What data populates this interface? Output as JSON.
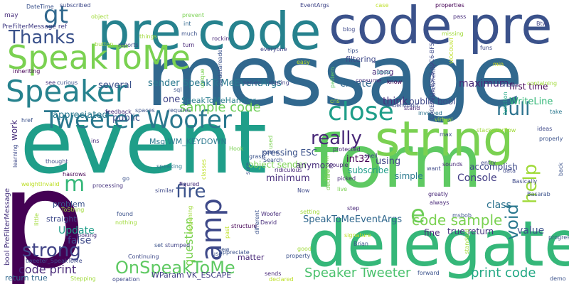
{
  "words": [
    {
      "text": "message",
      "color": "#31688e"
    },
    {
      "text": "event",
      "color": "#1f9e89"
    },
    {
      "text": "p",
      "color": "#440154"
    },
    {
      "text": "form",
      "color": "#5ec962"
    },
    {
      "text": "pre code",
      "color": "#26828e"
    },
    {
      "text": "code pre",
      "color": "#3b528b"
    },
    {
      "text": "delegate",
      "color": "#35b779"
    },
    {
      "text": "string",
      "color": "#7ad151"
    },
    {
      "text": "SpeakToMe",
      "color": "#7ad151"
    },
    {
      "text": "Speaker",
      "color": "#26828e"
    },
    {
      "text": "Tweeter Woofer",
      "color": "#2a788e"
    },
    {
      "text": "close",
      "color": "#1f9e89"
    },
    {
      "text": "amp",
      "color": "#3e4989"
    },
    {
      "text": "really",
      "color": "#482878"
    },
    {
      "text": "null",
      "color": "#2c728e"
    },
    {
      "text": "help",
      "color": "#a0da39"
    },
    {
      "text": "gt",
      "color": "#31688e"
    },
    {
      "text": "Thanks",
      "color": "#3b528b"
    },
    {
      "text": "fire",
      "color": "#3b528b"
    },
    {
      "text": "strong",
      "color": "#414487"
    },
    {
      "text": "OnSpeakToMe",
      "color": "#5ec962"
    },
    {
      "text": "code sample",
      "color": "#7ad151"
    },
    {
      "text": "e",
      "color": "#6ece58"
    },
    {
      "text": "void",
      "color": "#2a788e"
    },
    {
      "text": "m",
      "color": "#35b779"
    },
    {
      "text": "sample code",
      "color": "#6ece58"
    },
    {
      "text": "Speaker Tweeter",
      "color": "#4ac16d"
    },
    {
      "text": "print code",
      "color": "#22a884"
    },
    {
      "text": "code print",
      "color": "#482878"
    },
    {
      "text": "SpeakToMeEventArgs",
      "color": "#31688e"
    },
    {
      "text": "question",
      "color": "#7ad151"
    },
    {
      "text": "Console",
      "color": "#433e85"
    },
    {
      "text": "class",
      "color": "#2c728e"
    },
    {
      "text": "Update",
      "color": "#1f9e89"
    },
    {
      "text": "value",
      "color": "#3b528b"
    },
    {
      "text": "false",
      "color": "#3e4989"
    },
    {
      "text": "true return",
      "color": "#46337e"
    },
    {
      "text": "fine",
      "color": "#482878"
    },
    {
      "text": "create",
      "color": "#31688e"
    },
    {
      "text": "maximum",
      "color": "#482878"
    },
    {
      "text": "first time",
      "color": "#440154"
    },
    {
      "text": "sender SpeakToMeEventArgs",
      "color": "#2a788e"
    },
    {
      "text": "several",
      "color": "#3b528b"
    },
    {
      "text": "SpeakToMeHandler",
      "color": "#287c8e"
    },
    {
      "text": "one",
      "color": "#414487"
    },
    {
      "text": "think",
      "color": "#472d7b"
    },
    {
      "text": "public bool",
      "color": "#3e4989"
    },
    {
      "text": "WriteLine",
      "color": "#35b779"
    },
    {
      "text": "appreciated",
      "color": "#2a788e"
    },
    {
      "text": "public",
      "color": "#3b528b"
    },
    {
      "text": "Msg WM_KEYDOWN",
      "color": "#2a788e"
    },
    {
      "text": "pressing ESC",
      "color": "#3b528b"
    },
    {
      "text": "int32",
      "color": "#440154"
    },
    {
      "text": "using",
      "color": "#414487"
    },
    {
      "text": "object sender",
      "color": "#7ad151"
    },
    {
      "text": "minimum",
      "color": "#472d7b"
    },
    {
      "text": "anymore",
      "color": "#472d7b"
    },
    {
      "text": "subscribe",
      "color": "#1f9e89"
    },
    {
      "text": "simple",
      "color": "#2a788e"
    },
    {
      "text": "accomplish",
      "color": "#3e4989"
    },
    {
      "text": "work",
      "color": "#472d7b"
    },
    {
      "text": "filtering",
      "color": "#3e4989"
    },
    {
      "text": "along",
      "color": "#482878"
    },
    {
      "text": "matter",
      "color": "#482878"
    },
    {
      "text": "problem",
      "color": "#3b528b"
    },
    {
      "text": "straight",
      "color": "#3e4989"
    },
    {
      "text": "WParam VK_ESCAPE",
      "color": "#433e85"
    },
    {
      "text": "return true",
      "color": "#31688e"
    },
    {
      "text": "bool PreFilterMessage",
      "color": "#46337e"
    },
    {
      "text": "PreFilterMessage ref",
      "color": "#433e85"
    },
    {
      "text": "may",
      "color": "#472d7b"
    },
    {
      "text": "DateTime",
      "color": "#3b528b"
    },
    {
      "text": "subscribed",
      "color": "#3e4989"
    },
    {
      "text": "object",
      "color": "#a0da39"
    },
    {
      "text": "EventArgs",
      "color": "#404688"
    },
    {
      "text": "case",
      "color": "#bddf26"
    },
    {
      "text": "properties",
      "color": "#440154"
    },
    {
      "text": "pass",
      "color": "#472d7b"
    },
    {
      "text": "Btw",
      "color": "#404688"
    },
    {
      "text": "int",
      "color": "#31688e"
    },
    {
      "text": "prevent",
      "color": "#7ad151"
    },
    {
      "text": "much",
      "color": "#3b528b"
    },
    {
      "text": "things",
      "color": "#a0da39"
    },
    {
      "text": "button",
      "color": "#a0da39"
    },
    {
      "text": "turn",
      "color": "#482878"
    },
    {
      "text": "reports",
      "color": "#3e4989"
    },
    {
      "text": "rockin",
      "color": "#482878"
    },
    {
      "text": "everyone",
      "color": "#414487"
    },
    {
      "text": "easy",
      "color": "#bddf26"
    },
    {
      "text": "tips",
      "color": "#3b528b"
    },
    {
      "text": "min",
      "color": "#d8e219"
    },
    {
      "text": "pose",
      "color": "#2a788e"
    },
    {
      "text": "curious",
      "color": "#3b528b"
    },
    {
      "text": "see",
      "color": "#46337e"
    },
    {
      "text": "inheriting",
      "color": "#440154"
    },
    {
      "text": "sql",
      "color": "#3b528b"
    },
    {
      "text": "sqldatareader",
      "color": "#3b528b"
    },
    {
      "text": "unique",
      "color": "#7ad151"
    },
    {
      "text": "series",
      "color": "#3e4989"
    },
    {
      "text": "sharing",
      "color": "#414487"
    },
    {
      "text": "pattern",
      "color": "#5ec962"
    },
    {
      "text": "consume",
      "color": "#472d7b"
    },
    {
      "text": "know",
      "color": "#440154"
    },
    {
      "text": "concurrently",
      "color": "#3e4989"
    },
    {
      "text": "blog",
      "color": "#3e4989"
    },
    {
      "text": "missing",
      "color": "#a0da39"
    },
    {
      "text": "funs",
      "color": "#3e4989"
    },
    {
      "text": "containing",
      "color": "#a0da39"
    },
    {
      "text": "shows",
      "color": "#3b528b"
    },
    {
      "text": "take",
      "color": "#2a788e"
    },
    {
      "text": "ideas",
      "color": "#3e4989"
    },
    {
      "text": "properly",
      "color": "#3b528b"
    },
    {
      "text": "stackoverflow",
      "color": "#a0da39"
    },
    {
      "text": "function",
      "color": "#22a884"
    },
    {
      "text": "virtual",
      "color": "#a0da39"
    },
    {
      "text": "involved",
      "color": "#2c728e"
    },
    {
      "text": "stand",
      "color": "#482878"
    },
    {
      "text": "understood",
      "color": "#3e4989"
    },
    {
      "text": "cns",
      "color": "#a0da39"
    },
    {
      "text": "feedback",
      "color": "#472d7b"
    },
    {
      "text": "spaces",
      "color": "#3b528b"
    },
    {
      "text": "requires",
      "color": "#3b528b"
    },
    {
      "text": "href",
      "color": "#3b528b"
    },
    {
      "text": "ins",
      "color": "#472d7b"
    },
    {
      "text": "learning",
      "color": "#3e4989"
    },
    {
      "text": "thought",
      "color": "#3e4989"
    },
    {
      "text": "hasrows",
      "color": "#440154"
    },
    {
      "text": "weightInvalid",
      "color": "#bddf26"
    },
    {
      "text": "go",
      "color": "#3b528b"
    },
    {
      "text": "processing",
      "color": "#46337e"
    },
    {
      "text": "speaking",
      "color": "#2a788e"
    },
    {
      "text": "similar",
      "color": "#3e4989"
    },
    {
      "text": "classes",
      "color": "#bddf26"
    },
    {
      "text": "figured",
      "color": "#472d7b"
    },
    {
      "text": "sure",
      "color": "#3b528b"
    },
    {
      "text": "Hook",
      "color": "#7ad151"
    },
    {
      "text": "grasp",
      "color": "#3b528b"
    },
    {
      "text": "come",
      "color": "#3b528b"
    },
    {
      "text": "used",
      "color": "#7ad151"
    },
    {
      "text": "Search",
      "color": "#3b528b"
    },
    {
      "text": "ridiculous",
      "color": "#482878"
    },
    {
      "text": "protected",
      "color": "#482878"
    },
    {
      "text": "shell",
      "color": "#414487"
    },
    {
      "text": "couple",
      "color": "#482878"
    },
    {
      "text": "live",
      "color": "#7ad151"
    },
    {
      "text": "picked",
      "color": "#482878"
    },
    {
      "text": "Now",
      "color": "#3e4989"
    },
    {
      "text": "Woofer",
      "color": "#472d7b"
    },
    {
      "text": "David",
      "color": "#472d7b"
    },
    {
      "text": "structure",
      "color": "#440154"
    },
    {
      "text": "reopening",
      "color": "#a0da39"
    },
    {
      "text": "different",
      "color": "#3b528b"
    },
    {
      "text": "found",
      "color": "#3b528b"
    },
    {
      "text": "nothing",
      "color": "#a0da39"
    },
    {
      "text": "ToString",
      "color": "#a0da39"
    },
    {
      "text": "tweeter_SpeakToMe",
      "color": "#3e4989"
    },
    {
      "text": "Stepping",
      "color": "#a0da39"
    },
    {
      "text": "looking",
      "color": "#46337e"
    },
    {
      "text": "little",
      "color": "#a0da39"
    },
    {
      "text": "set",
      "color": "#3b528b"
    },
    {
      "text": "stumped",
      "color": "#414487"
    },
    {
      "text": "Continuing",
      "color": "#3e4989"
    },
    {
      "text": "appreciate",
      "color": "#3b528b"
    },
    {
      "text": "new",
      "color": "#3b528b"
    },
    {
      "text": "sends",
      "color": "#482878"
    },
    {
      "text": "operation",
      "color": "#3e4989"
    },
    {
      "text": "declared",
      "color": "#bddf26"
    },
    {
      "text": "property",
      "color": "#3b528b"
    },
    {
      "text": "use",
      "color": "#3b528b"
    },
    {
      "text": "past",
      "color": "#bddf26"
    },
    {
      "text": "signature",
      "color": "#bddf26"
    },
    {
      "text": "Brian",
      "color": "#3b528b"
    },
    {
      "text": "forward",
      "color": "#3b528b"
    },
    {
      "text": "step",
      "color": "#482878"
    },
    {
      "text": "msbob",
      "color": "#3b528b"
    },
    {
      "text": "always",
      "color": "#482878"
    },
    {
      "text": "greatly",
      "color": "#482878"
    },
    {
      "text": "want",
      "color": "#3e4989"
    },
    {
      "text": "sounds",
      "color": "#482878"
    },
    {
      "text": "entry",
      "color": "#3e4989"
    },
    {
      "text": "data",
      "color": "#3e4989"
    },
    {
      "text": "Basarab",
      "color": "#3b528b"
    },
    {
      "text": "Basically",
      "color": "#3e4989"
    },
    {
      "text": "back",
      "color": "#3b528b"
    },
    {
      "text": "max",
      "color": "#3e4989"
    },
    {
      "text": "progress",
      "color": "#3b528b"
    },
    {
      "text": "demo",
      "color": "#3b528b"
    },
    {
      "text": "standard",
      "color": "#a0da39"
    },
    {
      "text": "setting",
      "color": "#a0da39"
    },
    {
      "text": "good",
      "color": "#a0da39"
    },
    {
      "text": "declare",
      "color": "#7ad151"
    },
    {
      "text": "WinForm",
      "color": "#7ad151"
    },
    {
      "text": "CA0E97D6-B5C6-49C6-BF58",
      "color": "#3e4989"
    },
    {
      "text": "WOCOUNT",
      "color": "#bddf26"
    }
  ]
}
